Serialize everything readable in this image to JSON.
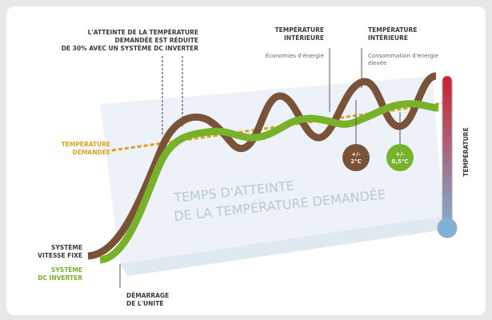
{
  "callout_top": {
    "lines": [
      "L'ATTEINTE DE LA TEMPÉRATURE",
      "DEMANDÉE EST RÉDUITE",
      "DE 30% AVEC UN SYSTÈME DC INVERTER"
    ]
  },
  "interior_left": {
    "title": [
      "TEMPÉRATURE",
      "INTÉRIEURE"
    ],
    "note": "Économies d'énergie"
  },
  "interior_right": {
    "title": [
      "TEMPÉRATURE",
      "INTÉRIEURE"
    ],
    "note": [
      "Consommation d'énergie",
      "élevée"
    ]
  },
  "requested_temperature": [
    "TEMPÉRATURE",
    "DEMANDÉE"
  ],
  "badge_fixed": [
    "+/-",
    "2°C"
  ],
  "badge_inverter": [
    "+/-",
    "0,5°C"
  ],
  "time_label": [
    "TEMPS D'ATTEINTE",
    "DE LA TEMPÉRATURE DEMANDÉE"
  ],
  "thermometer_label": "TEMPÉRATURE",
  "fixed_speed": [
    "SYSTÈME",
    "VITESSE FIXE"
  ],
  "dc_inverter": [
    "SYSTÈME",
    "DC INVERTER"
  ],
  "startup": [
    "DÉMARRAGE",
    "DE L'UNITÉ"
  ]
}
